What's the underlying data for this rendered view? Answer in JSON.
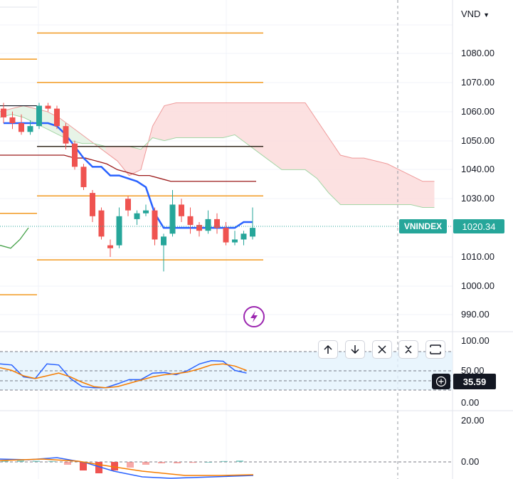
{
  "currency": "VND",
  "symbol_label": "VNINDEX",
  "last_price": "1020.34",
  "rsi_value": "35.59",
  "price_ticks": [
    "1080.00",
    "1070.00",
    "1060.00",
    "1050.00",
    "1040.00",
    "1030.00",
    "1010.00",
    "1000.00",
    "990.00"
  ],
  "rsi_ticks": [
    "100.00",
    "50.00",
    "0.00"
  ],
  "macd_ticks": [
    "20.00",
    "0.00"
  ],
  "colors": {
    "up": "#26a69a",
    "down": "#ef5350",
    "cloud_bear": "#fbdcdc",
    "cloud_bull": "#e3f2e3",
    "kijun": "#2962ff",
    "base": "#9c1b1b",
    "level": "#f29a21",
    "accent": "#9c27b0"
  },
  "controls": [
    "arrow-up",
    "arrow-down",
    "close",
    "collapse",
    "maximize"
  ],
  "chart_data": {
    "type": "candlestick",
    "ylim": [
      985,
      1096
    ],
    "candles": [
      {
        "o": 1061,
        "h": 1063,
        "l": 1056,
        "c": 1058
      },
      {
        "o": 1058,
        "h": 1060,
        "l": 1054,
        "c": 1056
      },
      {
        "o": 1056,
        "h": 1059,
        "l": 1052,
        "c": 1053
      },
      {
        "o": 1053,
        "h": 1057,
        "l": 1052,
        "c": 1055
      },
      {
        "o": 1055,
        "h": 1063,
        "l": 1054,
        "c": 1062
      },
      {
        "o": 1062,
        "h": 1063,
        "l": 1060,
        "c": 1061
      },
      {
        "o": 1061,
        "h": 1062,
        "l": 1054,
        "c": 1055
      },
      {
        "o": 1055,
        "h": 1056,
        "l": 1047,
        "c": 1049
      },
      {
        "o": 1049,
        "h": 1050,
        "l": 1040,
        "c": 1041
      },
      {
        "o": 1041,
        "h": 1042,
        "l": 1033,
        "c": 1034
      },
      {
        "o": 1032,
        "h": 1033,
        "l": 1022,
        "c": 1024
      },
      {
        "o": 1026,
        "h": 1027,
        "l": 1016,
        "c": 1017
      },
      {
        "o": 1014,
        "h": 1016,
        "l": 1010,
        "c": 1013
      },
      {
        "o": 1014,
        "h": 1027,
        "l": 1013,
        "c": 1024
      },
      {
        "o": 1030,
        "h": 1031,
        "l": 1024,
        "c": 1026
      },
      {
        "o": 1023,
        "h": 1026,
        "l": 1021,
        "c": 1025
      },
      {
        "o": 1025,
        "h": 1028,
        "l": 1024,
        "c": 1026
      },
      {
        "o": 1026,
        "h": 1027,
        "l": 1014,
        "c": 1016
      },
      {
        "o": 1014,
        "h": 1018,
        "l": 1005,
        "c": 1017
      },
      {
        "o": 1018,
        "h": 1033,
        "l": 1017,
        "c": 1028
      },
      {
        "o": 1028,
        "h": 1030,
        "l": 1022,
        "c": 1024
      },
      {
        "o": 1024,
        "h": 1027,
        "l": 1018,
        "c": 1021
      },
      {
        "o": 1021,
        "h": 1022,
        "l": 1017,
        "c": 1019
      },
      {
        "o": 1019,
        "h": 1026,
        "l": 1018,
        "c": 1023
      },
      {
        "o": 1023,
        "h": 1025,
        "l": 1018,
        "c": 1020
      },
      {
        "o": 1020,
        "h": 1022,
        "l": 1014,
        "c": 1015
      },
      {
        "o": 1015,
        "h": 1019,
        "l": 1014,
        "c": 1016
      },
      {
        "o": 1016,
        "h": 1019,
        "l": 1014,
        "c": 1018
      },
      {
        "o": 1017,
        "h": 1027,
        "l": 1016,
        "c": 1020
      }
    ],
    "kijun": [
      1056,
      1056,
      1056,
      1056,
      1056,
      1056,
      1055,
      1052,
      1048,
      1044,
      1041,
      1041,
      1038,
      1038,
      1037,
      1036,
      1034,
      1025,
      1020,
      1020,
      1020,
      1020,
      1020,
      1020,
      1020,
      1020,
      1020,
      1022,
      1022
    ],
    "base_line": [
      1045,
      1045,
      1045,
      1045,
      1045,
      1045,
      1045,
      1044,
      1044,
      1043,
      1042,
      1040,
      1039,
      1038,
      1038,
      1037,
      1036,
      1036,
      1036,
      1036,
      1036,
      1036,
      1036,
      1036,
      1036
    ],
    "cloud_top": [
      1060,
      1061,
      1062,
      1061,
      1060,
      1058,
      1055,
      1052,
      1049,
      1046,
      1043,
      1038,
      1040,
      1055,
      1062,
      1063,
      1063,
      1063,
      1063,
      1063,
      1063,
      1063,
      1063,
      1063,
      1063,
      1063,
      1063,
      1057,
      1051,
      1045,
      1044,
      1044,
      1043,
      1042,
      1040,
      1038,
      1036,
      1036
    ],
    "cloud_bottom": [
      1058,
      1059,
      1058,
      1056,
      1054,
      1052,
      1050,
      1049,
      1049,
      1048,
      1048,
      1048,
      1047,
      1051,
      1050,
      1051,
      1051,
      1051,
      1051,
      1051,
      1052,
      1049,
      1046,
      1043,
      1040,
      1040,
      1040,
      1037,
      1032,
      1028,
      1028,
      1028,
      1028,
      1028,
      1028,
      1028,
      1027,
      1027
    ],
    "levels": [
      1087,
      1070,
      1048,
      1031,
      1009
    ],
    "rsi": [
      72,
      70,
      48,
      45,
      72,
      70,
      45,
      30,
      28,
      28,
      35,
      43,
      43,
      55,
      56,
      52,
      60,
      72,
      78,
      77,
      60,
      55
    ],
    "rsi_signal": [
      65,
      60,
      50,
      45,
      50,
      55,
      48,
      38,
      30,
      28,
      30,
      36,
      42,
      48,
      52,
      54,
      57,
      63,
      70,
      72,
      68,
      60
    ],
    "macd_hist": [
      0.5,
      0.6,
      0.4,
      0.3,
      -1,
      -3,
      -4,
      -3,
      -2,
      -1,
      -0.5,
      -0.5,
      -0.3,
      0,
      0.3,
      0.5
    ]
  }
}
